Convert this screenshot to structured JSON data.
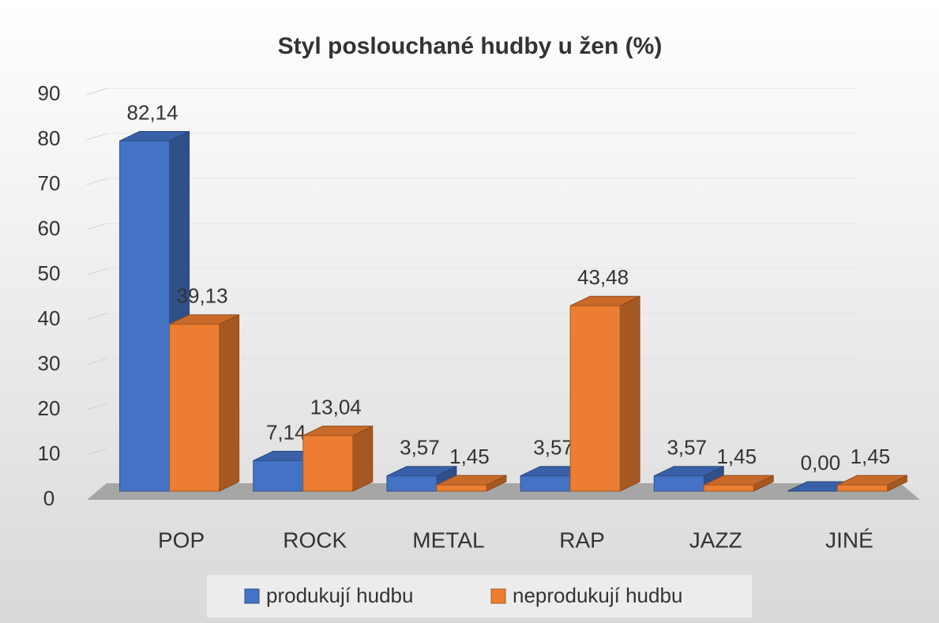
{
  "chart_data": {
    "type": "bar3d",
    "title": "Styl poslouchané hudby u žen (%)",
    "categories": [
      "POP",
      "ROCK",
      "METAL",
      "RAP",
      "JAZZ",
      "JINÉ"
    ],
    "series": [
      {
        "name": "produkují hudbu",
        "color": "#4472c4",
        "values": [
          82.14,
          7.14,
          3.57,
          3.57,
          3.57,
          0.0
        ],
        "value_labels": [
          "82,14",
          "7,14",
          "3,57",
          "3,57",
          "3,57",
          "0,00"
        ]
      },
      {
        "name": "neprodukují hudbu",
        "color": "#ed7d31",
        "values": [
          39.13,
          13.04,
          1.45,
          43.48,
          1.45,
          1.45
        ],
        "value_labels": [
          "39,13",
          "13,04",
          "1,45",
          "43,48",
          "1,45",
          "1,45"
        ]
      }
    ],
    "ylim": [
      0,
      90
    ],
    "yticks": [
      0,
      10,
      20,
      30,
      40,
      50,
      60,
      70,
      80,
      90
    ],
    "grid": true,
    "legend": "bottom"
  }
}
